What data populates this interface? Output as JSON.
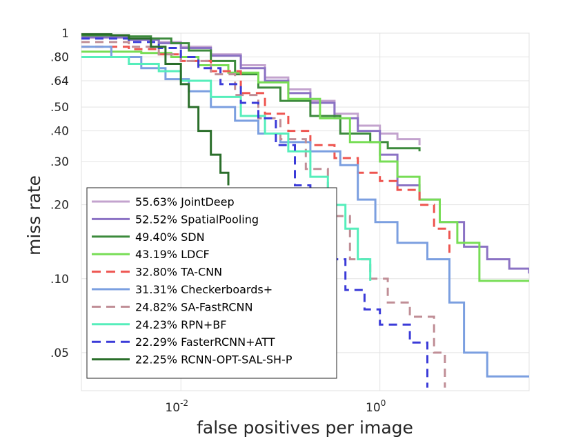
{
  "chart_data": {
    "type": "line",
    "title": "",
    "xlabel": "false positives per image",
    "ylabel": "miss rate",
    "x_scale": "log",
    "y_scale": "log",
    "xlim": [
      0.001,
      31.6
    ],
    "ylim": [
      0.035,
      1
    ],
    "grid": true,
    "legend_position": "bottom-left",
    "x_ticks": [
      {
        "value": 0.01,
        "base": "10",
        "exp": "-2"
      },
      {
        "value": 1,
        "base": "10",
        "exp": "0"
      }
    ],
    "y_ticks": [
      {
        "value": 1,
        "label": "1"
      },
      {
        "value": 0.8,
        "label": ".80"
      },
      {
        "value": 0.64,
        "label": ".64"
      },
      {
        "value": 0.5,
        "label": ".50"
      },
      {
        "value": 0.4,
        "label": ".40"
      },
      {
        "value": 0.3,
        "label": ".30"
      },
      {
        "value": 0.2,
        "label": ".20"
      },
      {
        "value": 0.1,
        "label": ".10"
      },
      {
        "value": 0.05,
        "label": ".05"
      }
    ],
    "series": [
      {
        "name": "55.63% JointDeep",
        "color": "#c3a3ce",
        "dash": false,
        "points": [
          [
            0.001,
            0.97
          ],
          [
            0.003,
            0.95
          ],
          [
            0.006,
            0.92
          ],
          [
            0.01,
            0.88
          ],
          [
            0.02,
            0.82
          ],
          [
            0.04,
            0.74
          ],
          [
            0.07,
            0.66
          ],
          [
            0.12,
            0.59
          ],
          [
            0.2,
            0.53
          ],
          [
            0.35,
            0.47
          ],
          [
            0.6,
            0.42
          ],
          [
            1.0,
            0.39
          ],
          [
            1.5,
            0.37
          ],
          [
            2.5,
            0.35
          ]
        ]
      },
      {
        "name": "52.52% SpatialPooling",
        "color": "#8b72c4",
        "dash": false,
        "points": [
          [
            0.001,
            0.96
          ],
          [
            0.003,
            0.94
          ],
          [
            0.006,
            0.91
          ],
          [
            0.01,
            0.87
          ],
          [
            0.02,
            0.81
          ],
          [
            0.04,
            0.72
          ],
          [
            0.07,
            0.64
          ],
          [
            0.12,
            0.57
          ],
          [
            0.2,
            0.52
          ],
          [
            0.35,
            0.45
          ],
          [
            0.6,
            0.4
          ],
          [
            1.0,
            0.32
          ],
          [
            1.5,
            0.24
          ],
          [
            2.5,
            0.21
          ],
          [
            4,
            0.17
          ],
          [
            7,
            0.135
          ],
          [
            12,
            0.12
          ],
          [
            20,
            0.11
          ],
          [
            31.6,
            0.105
          ]
        ]
      },
      {
        "name": "49.40% SDN",
        "color": "#3c8a3c",
        "dash": false,
        "points": [
          [
            0.001,
            0.98
          ],
          [
            0.003,
            0.97
          ],
          [
            0.005,
            0.95
          ],
          [
            0.008,
            0.91
          ],
          [
            0.012,
            0.85
          ],
          [
            0.02,
            0.77
          ],
          [
            0.035,
            0.68
          ],
          [
            0.06,
            0.6
          ],
          [
            0.1,
            0.53
          ],
          [
            0.2,
            0.46
          ],
          [
            0.4,
            0.39
          ],
          [
            0.8,
            0.36
          ],
          [
            1.2,
            0.34
          ],
          [
            2.5,
            0.33
          ]
        ]
      },
      {
        "name": "43.19% LDCF",
        "color": "#77dd55",
        "dash": false,
        "points": [
          [
            0.001,
            0.84
          ],
          [
            0.004,
            0.83
          ],
          [
            0.008,
            0.8
          ],
          [
            0.015,
            0.74
          ],
          [
            0.03,
            0.69
          ],
          [
            0.06,
            0.63
          ],
          [
            0.12,
            0.54
          ],
          [
            0.25,
            0.45
          ],
          [
            0.5,
            0.36
          ],
          [
            1.0,
            0.3
          ],
          [
            1.5,
            0.26
          ],
          [
            2.5,
            0.21
          ],
          [
            4,
            0.17
          ],
          [
            6,
            0.14
          ],
          [
            10,
            0.098
          ],
          [
            31.6,
            0.098
          ]
        ]
      },
      {
        "name": "32.80% TA-CNN",
        "color": "#ee5550",
        "dash": true,
        "points": [
          [
            0.001,
            0.88
          ],
          [
            0.003,
            0.86
          ],
          [
            0.006,
            0.82
          ],
          [
            0.01,
            0.77
          ],
          [
            0.02,
            0.7
          ],
          [
            0.04,
            0.57
          ],
          [
            0.07,
            0.47
          ],
          [
            0.12,
            0.4
          ],
          [
            0.2,
            0.35
          ],
          [
            0.35,
            0.31
          ],
          [
            0.6,
            0.27
          ],
          [
            1.0,
            0.25
          ],
          [
            1.5,
            0.23
          ],
          [
            2.5,
            0.2
          ],
          [
            3.5,
            0.16
          ],
          [
            5,
            0.125
          ]
        ]
      },
      {
        "name": "31.31% Checkerboards+",
        "color": "#7b9fe0",
        "dash": false,
        "points": [
          [
            0.001,
            0.88
          ],
          [
            0.002,
            0.8
          ],
          [
            0.004,
            0.72
          ],
          [
            0.007,
            0.65
          ],
          [
            0.012,
            0.58
          ],
          [
            0.02,
            0.5
          ],
          [
            0.035,
            0.44
          ],
          [
            0.06,
            0.39
          ],
          [
            0.1,
            0.36
          ],
          [
            0.2,
            0.33
          ],
          [
            0.4,
            0.29
          ],
          [
            0.6,
            0.21
          ],
          [
            0.9,
            0.17
          ],
          [
            1.5,
            0.14
          ],
          [
            3,
            0.12
          ],
          [
            5,
            0.08
          ],
          [
            7,
            0.05
          ],
          [
            12,
            0.04
          ],
          [
            31.6,
            0.04
          ]
        ]
      },
      {
        "name": "24.82% SA-FastRCNN",
        "color": "#c08e96",
        "dash": true,
        "points": [
          [
            0.001,
            0.92
          ],
          [
            0.003,
            0.88
          ],
          [
            0.006,
            0.82
          ],
          [
            0.01,
            0.77
          ],
          [
            0.02,
            0.68
          ],
          [
            0.035,
            0.56
          ],
          [
            0.06,
            0.45
          ],
          [
            0.1,
            0.37
          ],
          [
            0.18,
            0.28
          ],
          [
            0.3,
            0.18
          ],
          [
            0.5,
            0.12
          ],
          [
            0.8,
            0.1
          ],
          [
            1.2,
            0.08
          ],
          [
            2,
            0.07
          ],
          [
            3.5,
            0.05
          ],
          [
            4.5,
            0.036
          ]
        ]
      },
      {
        "name": "24.23% RPN+BF",
        "color": "#55eebb",
        "dash": false,
        "points": [
          [
            0.001,
            0.8
          ],
          [
            0.003,
            0.75
          ],
          [
            0.006,
            0.7
          ],
          [
            0.01,
            0.64
          ],
          [
            0.02,
            0.55
          ],
          [
            0.04,
            0.46
          ],
          [
            0.07,
            0.39
          ],
          [
            0.12,
            0.33
          ],
          [
            0.2,
            0.26
          ],
          [
            0.3,
            0.2
          ],
          [
            0.45,
            0.16
          ],
          [
            0.6,
            0.12
          ],
          [
            0.8,
            0.098
          ]
        ]
      },
      {
        "name": "22.29% FasterRCNN+ATT",
        "color": "#3b3bd8",
        "dash": true,
        "points": [
          [
            0.001,
            0.95
          ],
          [
            0.003,
            0.92
          ],
          [
            0.006,
            0.87
          ],
          [
            0.01,
            0.8
          ],
          [
            0.015,
            0.72
          ],
          [
            0.025,
            0.62
          ],
          [
            0.04,
            0.52
          ],
          [
            0.06,
            0.45
          ],
          [
            0.09,
            0.35
          ],
          [
            0.14,
            0.24
          ],
          [
            0.2,
            0.18
          ],
          [
            0.3,
            0.12
          ],
          [
            0.45,
            0.09
          ],
          [
            0.7,
            0.075
          ],
          [
            1.0,
            0.065
          ],
          [
            2,
            0.055
          ],
          [
            3,
            0.036
          ]
        ]
      },
      {
        "name": "22.25% RCNN-OPT-SAL-SH-P",
        "color": "#2a6e2a",
        "dash": false,
        "points": [
          [
            0.001,
            0.99
          ],
          [
            0.002,
            0.98
          ],
          [
            0.003,
            0.95
          ],
          [
            0.005,
            0.88
          ],
          [
            0.007,
            0.75
          ],
          [
            0.01,
            0.62
          ],
          [
            0.012,
            0.5
          ],
          [
            0.015,
            0.4
          ],
          [
            0.02,
            0.32
          ],
          [
            0.025,
            0.27
          ],
          [
            0.03,
            0.24
          ]
        ]
      }
    ]
  }
}
